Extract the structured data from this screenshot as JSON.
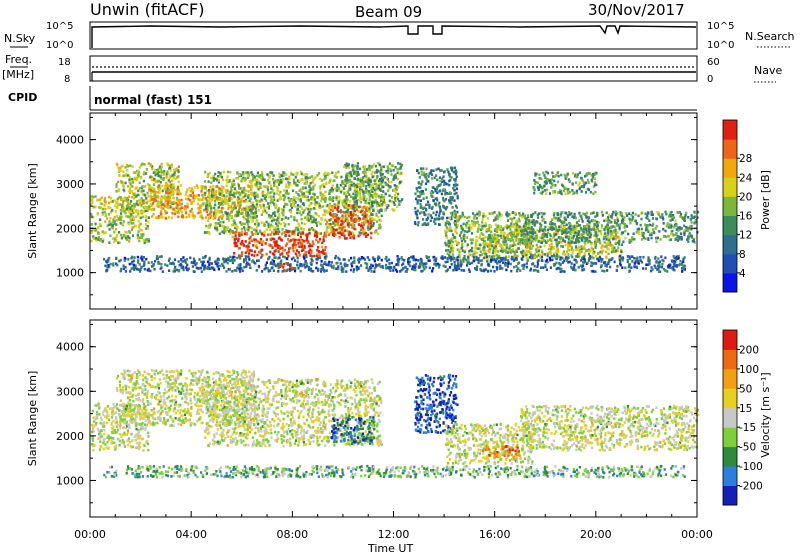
{
  "header": {
    "radar": "Unwin (fitACF)",
    "beam": "Beam 09",
    "date": "30/Nov/2017"
  },
  "strips": {
    "nsky_label": "N.Sky",
    "nsky_ticks": [
      "10^5",
      "10^0"
    ],
    "nsearch_label": "N.Search",
    "nsearch_ticks": [
      "10^5",
      "10^0"
    ],
    "freq_label_1": "Freq.",
    "freq_label_2": "[MHz]",
    "freq_ticks": [
      "18",
      "8"
    ],
    "nave_label": "Nave",
    "nave_ticks": [
      "60",
      "0"
    ],
    "cpid_label": "CPID",
    "cpid_text": "normal (fast) 151"
  },
  "chart_data": [
    {
      "type": "heatmap",
      "parameter": "Power",
      "ylabel": "Slant Range [km]",
      "xlabel": "Time UT",
      "x_ticks": [
        "00:00",
        "04:00",
        "08:00",
        "12:00",
        "16:00",
        "20:00",
        "00:00"
      ],
      "x_range_hours": [
        0,
        24
      ],
      "y_ticks": [
        1000,
        2000,
        3000,
        4000
      ],
      "ylim": [
        180,
        4600
      ],
      "colorbar": {
        "label": "Power [dB]",
        "ticks": [
          "4",
          "8",
          "12",
          "16",
          "20",
          "24",
          "28"
        ],
        "colors": [
          "#0a14e6",
          "#1f4fb4",
          "#2e6e8e",
          "#3d8c5a",
          "#7ab83a",
          "#d4d219",
          "#f0a80c",
          "#ee6418",
          "#e02010"
        ]
      },
      "regions": [
        {
          "t0": 0.0,
          "t1": 2.3,
          "r0": 1700,
          "r1": 2750,
          "level": 0.55
        },
        {
          "t0": 1.0,
          "t1": 3.5,
          "r0": 2450,
          "r1": 3500,
          "level": 0.55
        },
        {
          "t0": 2.3,
          "t1": 6.5,
          "r0": 2250,
          "r1": 3000,
          "level": 0.7
        },
        {
          "t0": 4.5,
          "t1": 11.5,
          "r0": 1900,
          "r1": 3300,
          "level": 0.5
        },
        {
          "t0": 5.6,
          "t1": 9.3,
          "r0": 1400,
          "r1": 1950,
          "level": 0.93
        },
        {
          "t0": 7.2,
          "t1": 8.0,
          "r0": 1050,
          "r1": 1250,
          "level": 0.95
        },
        {
          "t0": 9.4,
          "t1": 11.1,
          "r0": 1800,
          "r1": 2550,
          "level": 0.9
        },
        {
          "t0": 10.0,
          "t1": 12.3,
          "r0": 2400,
          "r1": 3500,
          "level": 0.45
        },
        {
          "t0": 12.8,
          "t1": 14.5,
          "r0": 2100,
          "r1": 3400,
          "level": 0.3
        },
        {
          "t0": 14.0,
          "t1": 17.5,
          "r0": 1300,
          "r1": 2400,
          "level": 0.5
        },
        {
          "t0": 15.5,
          "t1": 21.0,
          "r0": 1350,
          "r1": 2100,
          "level": 0.55
        },
        {
          "t0": 17.0,
          "t1": 24.0,
          "r0": 1700,
          "r1": 2400,
          "level": 0.4
        },
        {
          "t0": 17.5,
          "t1": 20.0,
          "r0": 2800,
          "r1": 3300,
          "level": 0.4
        },
        {
          "t0": 0.5,
          "t1": 23.5,
          "r0": 1050,
          "r1": 1400,
          "level": 0.25
        }
      ]
    },
    {
      "type": "heatmap",
      "parameter": "Velocity",
      "ylabel": "Slant Range [km]",
      "xlabel": "Time UT",
      "x_ticks": [
        "00:00",
        "04:00",
        "08:00",
        "12:00",
        "16:00",
        "20:00",
        "00:00"
      ],
      "x_range_hours": [
        0,
        24
      ],
      "y_ticks": [
        1000,
        2000,
        3000,
        4000
      ],
      "ylim": [
        180,
        4600
      ],
      "colorbar": {
        "label": "Velocity [m s⁻¹]",
        "ticks": [
          "200",
          "100",
          "50",
          "15",
          "-15",
          "-50",
          "-100",
          "-200"
        ],
        "colors": [
          "#1420b8",
          "#2c7de0",
          "#2d8c3a",
          "#7fcf3d",
          "#c8c8c8",
          "#e8d020",
          "#f0a010",
          "#ef6a10",
          "#e01a10"
        ]
      },
      "regions": [
        {
          "t0": 0.0,
          "t1": 2.3,
          "r0": 1700,
          "r1": 2750,
          "level": 0.5
        },
        {
          "t0": 1.0,
          "t1": 6.5,
          "r0": 2250,
          "r1": 3500,
          "level": 0.5
        },
        {
          "t0": 4.5,
          "t1": 11.5,
          "r0": 1800,
          "r1": 3300,
          "level": 0.5
        },
        {
          "t0": 9.5,
          "t1": 11.2,
          "r0": 1850,
          "r1": 2450,
          "level": 0.18
        },
        {
          "t0": 12.8,
          "t1": 14.5,
          "r0": 2100,
          "r1": 3400,
          "level": 0.1
        },
        {
          "t0": 14.0,
          "t1": 17.5,
          "r0": 1400,
          "r1": 2300,
          "level": 0.5
        },
        {
          "t0": 15.5,
          "t1": 17.0,
          "r0": 1500,
          "r1": 1800,
          "level": 0.8
        },
        {
          "t0": 17.0,
          "t1": 24.0,
          "r0": 1700,
          "r1": 2700,
          "level": 0.5
        },
        {
          "t0": 0.5,
          "t1": 23.5,
          "r0": 1100,
          "r1": 1350,
          "level": 0.35
        }
      ]
    }
  ]
}
